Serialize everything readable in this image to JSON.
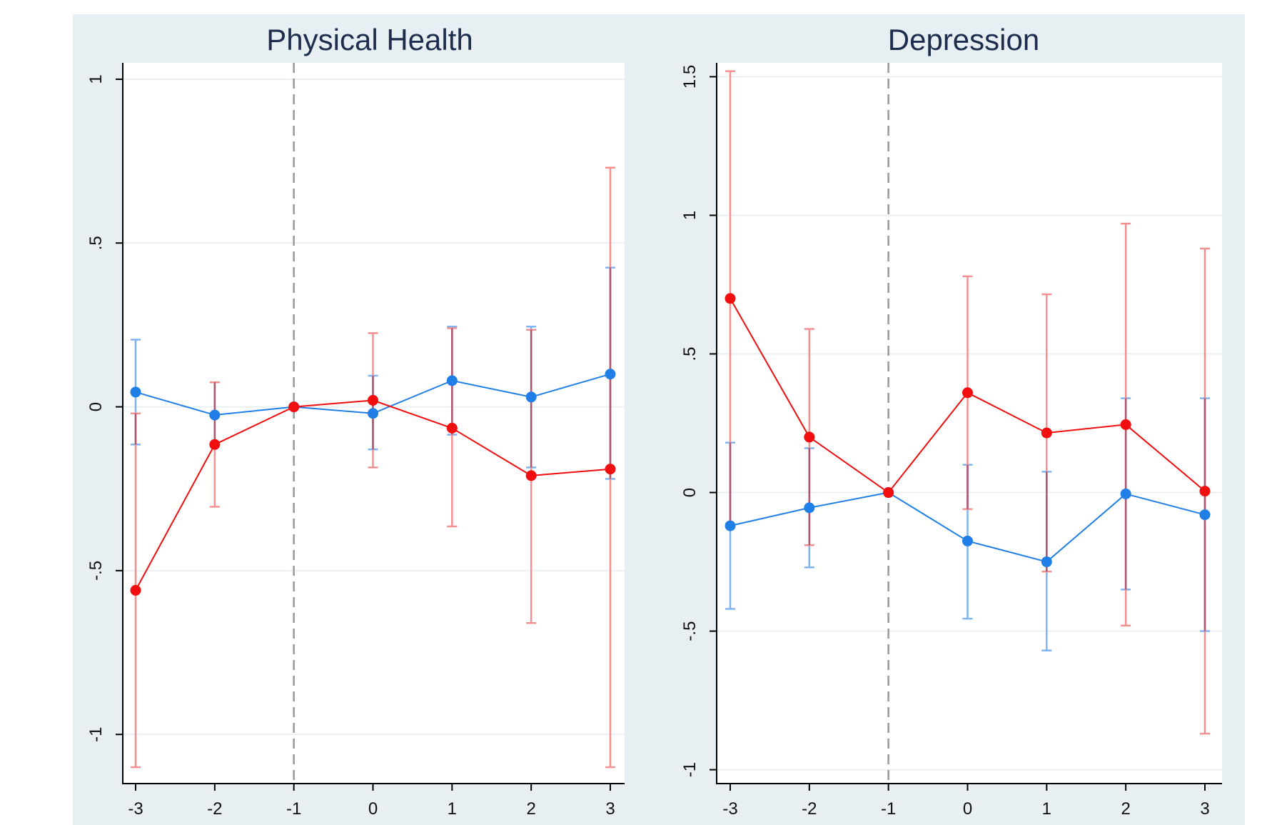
{
  "figure": {
    "background": "#e8eff3"
  },
  "colors": {
    "blue": "#1f7fe6",
    "blue_ci": "#7fb4f2",
    "red": "#f00e0e",
    "red_ci": "#f59090",
    "overlap_ci": "#b0556e",
    "vline": "#9a9a9a",
    "grid": "#e9f0f3"
  },
  "chart_data": [
    {
      "type": "line",
      "title": "Physical Health",
      "x": [
        -3,
        -2,
        -1,
        0,
        1,
        2,
        3
      ],
      "xticks": [
        "-3",
        "-2",
        "-1",
        "0",
        "1",
        "2",
        "3"
      ],
      "ylim": [
        -1.15,
        1.05
      ],
      "yticks": [
        -1,
        -0.5,
        0,
        0.5,
        1
      ],
      "ytick_labels": [
        "-1",
        "-.5",
        "0",
        ".5",
        "1"
      ],
      "reference_line_x": -1,
      "grid": true,
      "series": [
        {
          "color_key": "blue",
          "values": [
            0.045,
            -0.025,
            0.0,
            -0.02,
            0.08,
            0.03,
            0.1
          ],
          "ci_low": [
            -0.115,
            -0.11,
            0.0,
            -0.13,
            -0.085,
            -0.185,
            -0.22
          ],
          "ci_high": [
            0.205,
            0.075,
            0.0,
            0.095,
            0.245,
            0.245,
            0.425
          ]
        },
        {
          "color_key": "red",
          "values": [
            -0.56,
            -0.115,
            0.0,
            0.02,
            -0.065,
            -0.21,
            -0.19
          ],
          "ci_low": [
            -1.1,
            -0.305,
            0.0,
            -0.185,
            -0.365,
            -0.66,
            -1.1
          ],
          "ci_high": [
            -0.02,
            0.075,
            0.0,
            0.225,
            0.24,
            0.235,
            0.73
          ]
        }
      ]
    },
    {
      "type": "line",
      "title": "Depression",
      "x": [
        -3,
        -2,
        -1,
        0,
        1,
        2,
        3
      ],
      "xticks": [
        "-3",
        "-2",
        "-1",
        "0",
        "1",
        "2",
        "3"
      ],
      "ylim": [
        -1.05,
        1.55
      ],
      "yticks": [
        -1,
        -0.5,
        0,
        0.5,
        1,
        1.5
      ],
      "ytick_labels": [
        "-1",
        "-.5",
        "0",
        ".5",
        "1",
        "1.5"
      ],
      "reference_line_x": -1,
      "grid": true,
      "series": [
        {
          "color_key": "blue",
          "values": [
            -0.12,
            -0.055,
            0.0,
            -0.175,
            -0.25,
            -0.005,
            -0.08
          ],
          "ci_low": [
            -0.42,
            -0.27,
            0.0,
            -0.455,
            -0.57,
            -0.35,
            -0.5
          ],
          "ci_high": [
            0.18,
            0.16,
            0.0,
            0.1,
            0.075,
            0.34,
            0.34
          ]
        },
        {
          "color_key": "red",
          "values": [
            0.7,
            0.2,
            0.0,
            0.36,
            0.215,
            0.245,
            0.005
          ],
          "ci_low": [
            -0.12,
            -0.19,
            0.0,
            -0.06,
            -0.285,
            -0.48,
            -0.87
          ],
          "ci_high": [
            1.52,
            0.59,
            0.0,
            0.78,
            0.715,
            0.97,
            0.88
          ]
        }
      ]
    }
  ]
}
